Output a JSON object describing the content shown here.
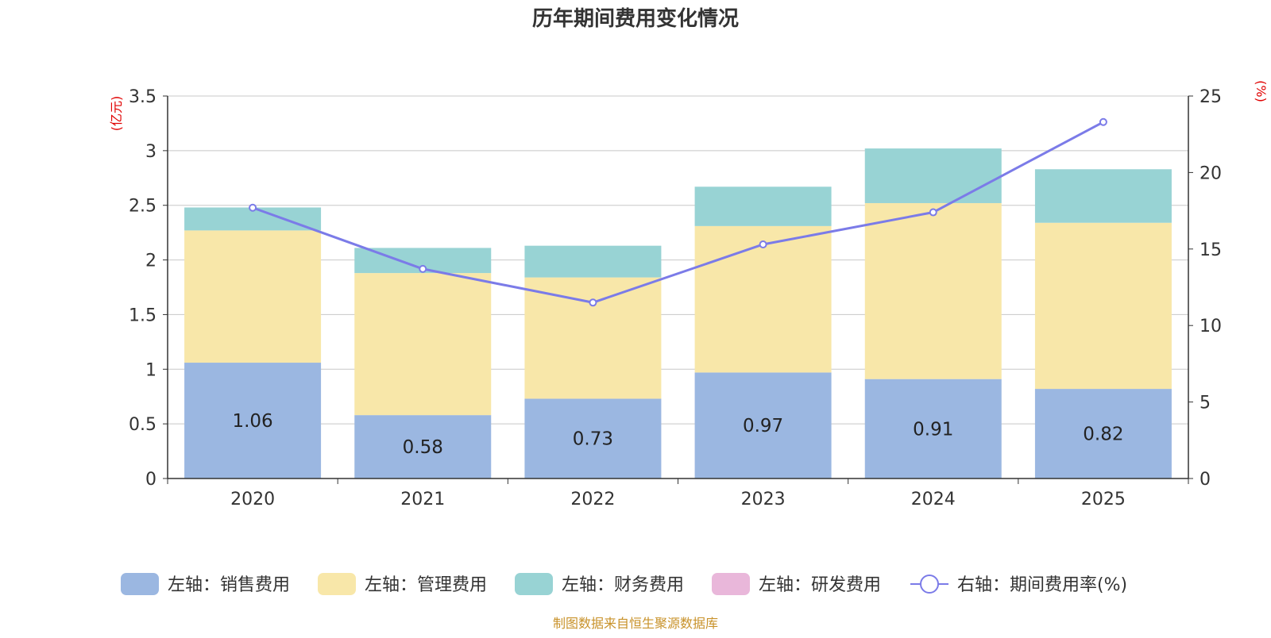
{
  "chart_data": {
    "type": "bar",
    "stacked": true,
    "title": "历年期间费用变化情况",
    "categories": [
      "2020",
      "2021",
      "2022",
      "2023",
      "2024",
      "2025"
    ],
    "y_left": {
      "label": "(亿元)",
      "ticks": [
        "0",
        "0.5",
        "1",
        "1.5",
        "2",
        "2.5",
        "3",
        "3.5"
      ],
      "range": [
        0,
        3.5
      ]
    },
    "y_right": {
      "label": "(%)",
      "ticks": [
        "0",
        "5",
        "10",
        "15",
        "20",
        "25"
      ],
      "range": [
        0,
        25
      ]
    },
    "series": [
      {
        "name": "左轴：销售费用",
        "color": "#9bb7e1",
        "values": [
          1.06,
          0.58,
          0.73,
          0.97,
          0.91,
          0.82
        ],
        "value_labels": [
          "1.06",
          "0.58",
          "0.73",
          "0.97",
          "0.91",
          "0.82"
        ]
      },
      {
        "name": "左轴：管理费用",
        "color": "#f8e7a9",
        "values": [
          1.21,
          1.3,
          1.11,
          1.34,
          1.61,
          1.52
        ]
      },
      {
        "name": "左轴：财务费用",
        "color": "#98d3d4",
        "values": [
          0.21,
          0.23,
          0.29,
          0.36,
          0.5,
          0.49
        ]
      },
      {
        "name": "左轴：研发费用",
        "color": "#e9b7da",
        "values": [
          0,
          0,
          0,
          0,
          0,
          0
        ]
      }
    ],
    "line_series": {
      "name": "右轴：期间费用率(%)",
      "color": "#7b7be8",
      "values": [
        17.7,
        13.7,
        11.5,
        15.3,
        17.4,
        23.3
      ]
    },
    "grid": true,
    "legend_position": "bottom",
    "source_note": "制图数据来自恒生聚源数据库"
  }
}
